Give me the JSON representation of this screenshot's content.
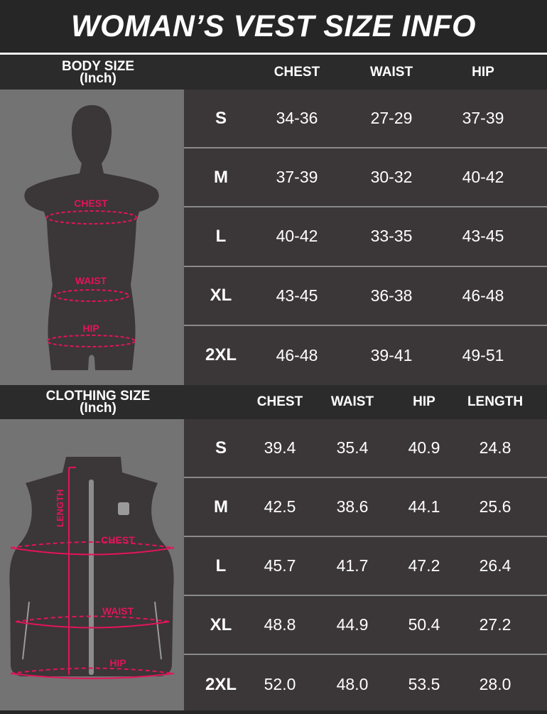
{
  "title": "WOMAN’S VEST SIZE INFO",
  "body_size": {
    "label": "BODY SIZE",
    "unit": "(Inch)",
    "columns": [
      "CHEST",
      "WAIST",
      "HIP"
    ],
    "figure_labels": {
      "chest": "CHEST",
      "waist": "WAIST",
      "hip": "HIP"
    },
    "rows": [
      {
        "size": "S",
        "values": [
          "34-36",
          "27-29",
          "37-39"
        ]
      },
      {
        "size": "M",
        "values": [
          "37-39",
          "30-32",
          "40-42"
        ]
      },
      {
        "size": "L",
        "values": [
          "40-42",
          "33-35",
          "43-45"
        ]
      },
      {
        "size": "XL",
        "values": [
          "43-45",
          "36-38",
          "46-48"
        ]
      },
      {
        "size": "2XL",
        "values": [
          "46-48",
          "39-41",
          "49-51"
        ]
      }
    ]
  },
  "clothing_size": {
    "label": "CLOTHING SIZE",
    "unit": "(Inch)",
    "columns": [
      "CHEST",
      "WAIST",
      "HIP",
      "LENGTH"
    ],
    "figure_labels": {
      "length": "LENGTH",
      "chest": "CHEST",
      "waist": "WAIST",
      "hip": "HIP"
    },
    "rows": [
      {
        "size": "S",
        "values": [
          "39.4",
          "35.4",
          "40.9",
          "24.8"
        ]
      },
      {
        "size": "M",
        "values": [
          "42.5",
          "38.6",
          "44.1",
          "25.6"
        ]
      },
      {
        "size": "L",
        "values": [
          "45.7",
          "41.7",
          "47.2",
          "26.4"
        ]
      },
      {
        "size": "XL",
        "values": [
          "48.8",
          "44.9",
          "50.4",
          "27.2"
        ]
      },
      {
        "size": "2XL",
        "values": [
          "52.0",
          "48.0",
          "53.5",
          "28.0"
        ]
      }
    ]
  },
  "colors": {
    "accent": "#e3145a",
    "panel": "#737373",
    "table": "#3b3637",
    "header": "#2b2b2b"
  }
}
